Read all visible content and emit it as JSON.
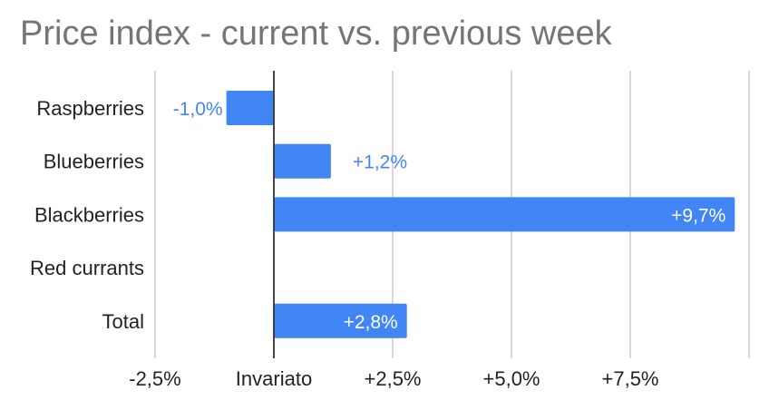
{
  "chart_data": {
    "type": "bar",
    "orientation": "horizontal",
    "title": "Price index - current vs. previous week",
    "categories": [
      "Raspberries",
      "Blueberries",
      "Blackberries",
      "Red currants",
      "Total"
    ],
    "values": [
      -1.0,
      1.2,
      9.7,
      null,
      2.8
    ],
    "data_labels": [
      "-1,0%",
      "+1,2%",
      "+9,7%",
      "",
      "+2,8%"
    ],
    "xlim": [
      -2.5,
      10
    ],
    "x_ticks": [
      -2.5,
      0,
      2.5,
      5.0,
      7.5
    ],
    "x_tick_labels": [
      "-2,5%",
      "Invariato",
      "+2,5%",
      "+5,0%",
      "+7,5%"
    ],
    "grid": true,
    "legend": "none",
    "colors": {
      "bar": "#4285f4",
      "grid": "#cccccc",
      "baseline": "#333333",
      "title": "#757575"
    }
  }
}
